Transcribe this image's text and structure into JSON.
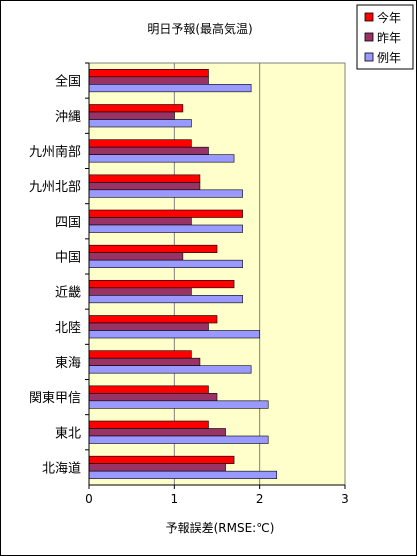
{
  "chart_data": {
    "type": "bar",
    "orientation": "horizontal",
    "title": "明日予報(最高気温)",
    "xlabel": "予報誤差(RMSE:℃)",
    "ylabel": "",
    "xlim": [
      0,
      3
    ],
    "xticks": [
      0,
      1,
      2,
      3
    ],
    "grid": "vertical major lines",
    "plot_background": "#ffffcc",
    "legend_position": "top-right",
    "categories": [
      "全国",
      "沖縄",
      "九州南部",
      "九州北部",
      "四国",
      "中国",
      "近畿",
      "北陸",
      "東海",
      "関東甲信",
      "東北",
      "北海道"
    ],
    "series": [
      {
        "name": "今年",
        "color": "#ff0000",
        "values": [
          1.4,
          1.1,
          1.2,
          1.3,
          1.8,
          1.5,
          1.7,
          1.5,
          1.2,
          1.4,
          1.4,
          1.7
        ]
      },
      {
        "name": "昨年",
        "color": "#993366",
        "values": [
          1.4,
          1.0,
          1.4,
          1.3,
          1.2,
          1.1,
          1.2,
          1.4,
          1.3,
          1.5,
          1.6,
          1.6
        ]
      },
      {
        "name": "例年",
        "color": "#9999ff",
        "values": [
          1.9,
          1.2,
          1.7,
          1.8,
          1.8,
          1.8,
          1.8,
          2.0,
          1.9,
          2.1,
          2.1,
          2.2
        ]
      }
    ]
  }
}
